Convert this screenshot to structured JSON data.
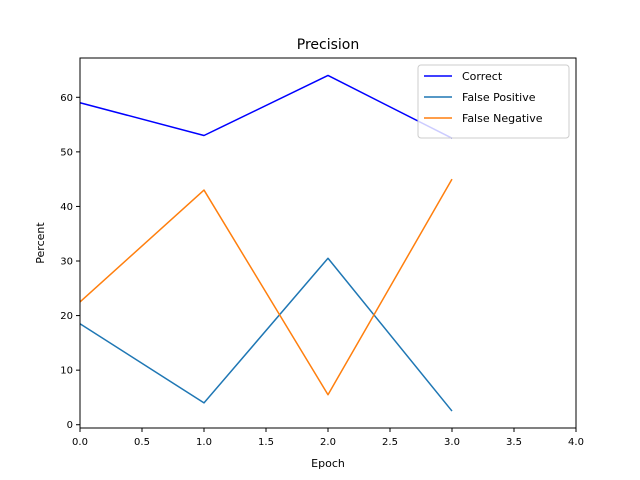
{
  "chart_data": {
    "type": "line",
    "title": "Precision",
    "xlabel": "Epoch",
    "ylabel": "Percent",
    "xlim": [
      0,
      4
    ],
    "ylim": [
      -0.6,
      67.2
    ],
    "xticks": [
      0.0,
      0.5,
      1.0,
      1.5,
      2.0,
      2.5,
      3.0,
      3.5,
      4.0
    ],
    "xtick_labels": [
      "0.0",
      "0.5",
      "1.0",
      "1.5",
      "2.0",
      "2.5",
      "3.0",
      "3.5",
      "4.0"
    ],
    "yticks": [
      0,
      10,
      20,
      30,
      40,
      50,
      60
    ],
    "ytick_labels": [
      "0",
      "10",
      "20",
      "30",
      "40",
      "50",
      "60"
    ],
    "grid": false,
    "legend_position": "top-right",
    "x": [
      0,
      1,
      2,
      3
    ],
    "series": [
      {
        "name": "Correct",
        "color": "#0000ff",
        "values": [
          59,
          53,
          64,
          52.5
        ]
      },
      {
        "name": "False Positive",
        "color": "#1f77b4",
        "values": [
          18.5,
          4,
          30.5,
          2.5
        ]
      },
      {
        "name": "False Negative",
        "color": "#ff7f0e",
        "values": [
          22.5,
          43,
          5.5,
          45
        ]
      }
    ]
  }
}
